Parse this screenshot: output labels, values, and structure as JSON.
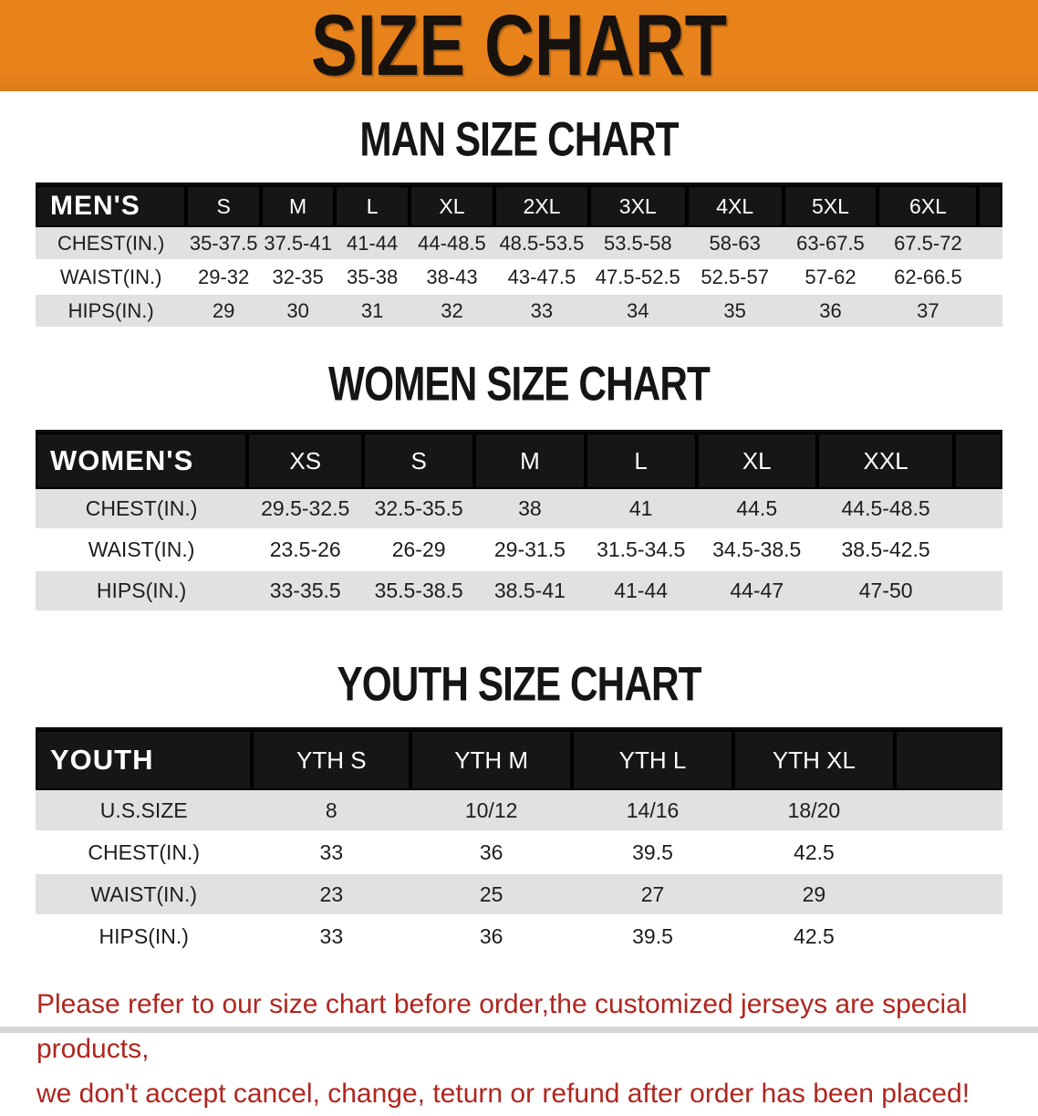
{
  "banner": {
    "title": "SIZE CHART"
  },
  "colors": {
    "banner_bg": "#e8831c",
    "banner_text": "#17120e",
    "header_bg": "#161616",
    "header_text": "#ffffff",
    "stripe": "#e1e1e1",
    "text": "#1d1d1d",
    "disclaimer": "#b0261f"
  },
  "men": {
    "heading": "MAN SIZE CHART",
    "table": {
      "header": [
        "MEN'S",
        "S",
        "M",
        "L",
        "XL",
        "2XL",
        "3XL",
        "4XL",
        "5XL",
        "6XL"
      ],
      "rows": [
        [
          "CHEST(IN.)",
          "35-37.5",
          "37.5-41",
          "41-44",
          "44-48.5",
          "48.5-53.5",
          "53.5-58",
          "58-63",
          "63-67.5",
          "67.5-72"
        ],
        [
          "WAIST(IN.)",
          "29-32",
          "32-35",
          "35-38",
          "38-43",
          "43-47.5",
          "47.5-52.5",
          "52.5-57",
          "57-62",
          "62-66.5"
        ],
        [
          "HIPS(IN.)",
          "29",
          "30",
          "31",
          "32",
          "33",
          "34",
          "35",
          "36",
          "37"
        ]
      ]
    }
  },
  "women": {
    "heading": "WOMEN SIZE CHART",
    "table": {
      "header": [
        "WOMEN'S",
        "XS",
        "S",
        "M",
        "L",
        "XL",
        "XXL"
      ],
      "rows": [
        [
          "CHEST(IN.)",
          "29.5-32.5",
          "32.5-35.5",
          "38",
          "41",
          "44.5",
          "44.5-48.5"
        ],
        [
          "WAIST(IN.)",
          "23.5-26",
          "26-29",
          "29-31.5",
          "31.5-34.5",
          "34.5-38.5",
          "38.5-42.5"
        ],
        [
          "HIPS(IN.)",
          "33-35.5",
          "35.5-38.5",
          "38.5-41",
          "41-44",
          "44-47",
          "47-50"
        ]
      ]
    }
  },
  "youth": {
    "heading": "YOUTH SIZE CHART",
    "table": {
      "header": [
        "YOUTH",
        "YTH S",
        "YTH M",
        "YTH L",
        "YTH XL"
      ],
      "rows": [
        [
          "U.S.SIZE",
          "8",
          "10/12",
          "14/16",
          "18/20"
        ],
        [
          "CHEST(IN.)",
          "33",
          "36",
          "39.5",
          "42.5"
        ],
        [
          "WAIST(IN.)",
          "23",
          "25",
          "27",
          "29"
        ],
        [
          "HIPS(IN.)",
          "33",
          "36",
          "39.5",
          "42.5"
        ]
      ]
    }
  },
  "disclaimer": {
    "lines": [
      "Please refer to our size chart before order,the customized jerseys are special products,",
      "we don't accept cancel, change, teturn or refund after order has been placed!"
    ]
  }
}
